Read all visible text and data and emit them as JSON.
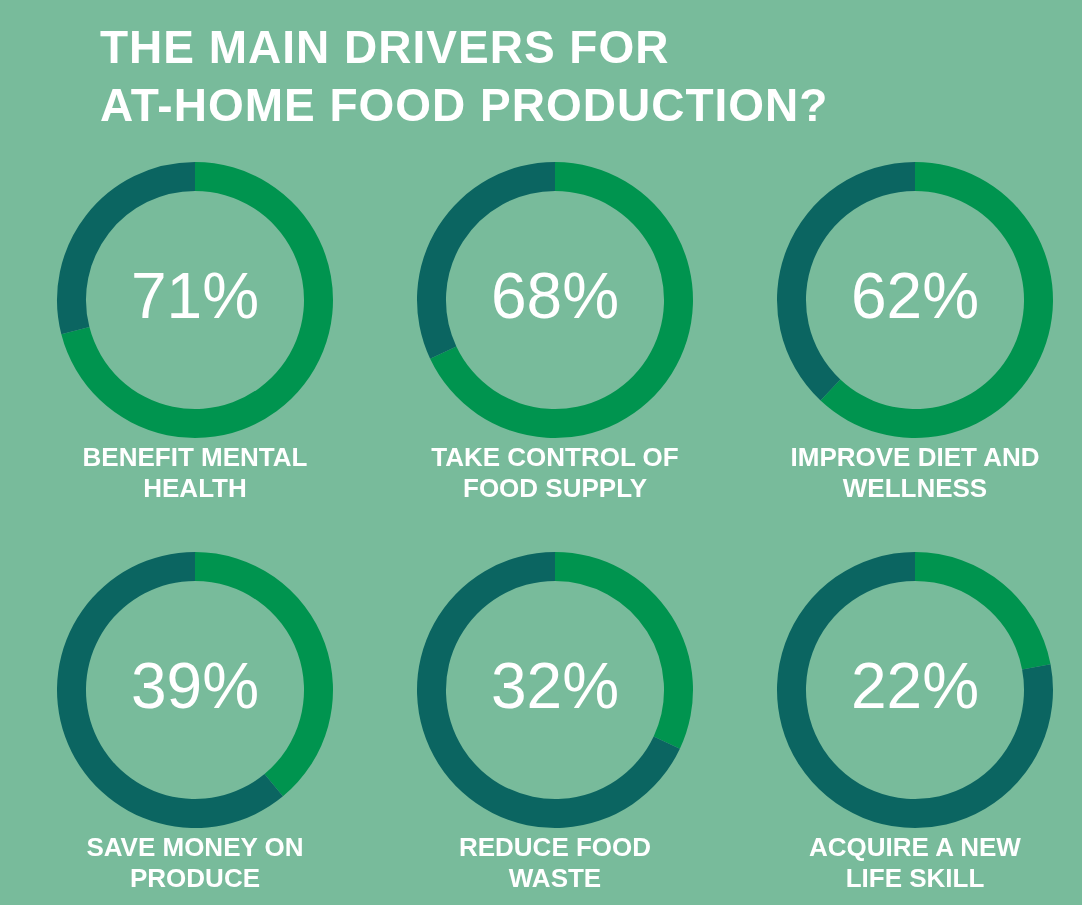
{
  "chart_data": [
    {
      "type": "other",
      "title": "THE MAIN DRIVERS FOR\nAT-HOME FOOD PRODUCTION?"
    },
    {
      "type": "donut",
      "title": "BENEFIT MENTAL\nHEALTH",
      "categories": [
        null,
        null
      ],
      "values": [
        71,
        29
      ],
      "colors": [
        "#00944f",
        "#0b6561"
      ],
      "value_labels": [
        "71%",
        null
      ]
    },
    {
      "type": "donut",
      "title": "TAKE CONTROL OF\nFOOD SUPPLY",
      "categories": [
        null,
        null
      ],
      "values": [
        68,
        32
      ],
      "colors": [
        "#00944f",
        "#0b6561"
      ],
      "value_labels": [
        "68%",
        null
      ]
    },
    {
      "type": "donut",
      "title": "IMPROVE DIET AND\nWELLNESS",
      "categories": [
        null,
        null
      ],
      "values": [
        62,
        38
      ],
      "colors": [
        "#00944f",
        "#0b6561"
      ],
      "value_labels": [
        "62%",
        null
      ]
    },
    {
      "type": "donut",
      "title": "SAVE MONEY ON\nPRODUCE",
      "categories": [
        null,
        null
      ],
      "values": [
        39,
        61
      ],
      "colors": [
        "#00944f",
        "#0b6561"
      ],
      "value_labels": [
        "39%",
        null
      ]
    },
    {
      "type": "donut",
      "title": "REDUCE FOOD\nWASTE",
      "categories": [
        null,
        null
      ],
      "values": [
        32,
        68
      ],
      "colors": [
        "#00944f",
        "#0b6561"
      ],
      "value_labels": [
        "32%",
        null
      ]
    },
    {
      "type": "donut",
      "title": "ACQUIRE A NEW\nLIFE SKILL",
      "categories": [
        null,
        null
      ],
      "values": [
        22,
        78
      ],
      "colors": [
        "#00944f",
        "#0b6561"
      ],
      "value_labels": [
        "22%",
        null
      ]
    }
  ]
}
